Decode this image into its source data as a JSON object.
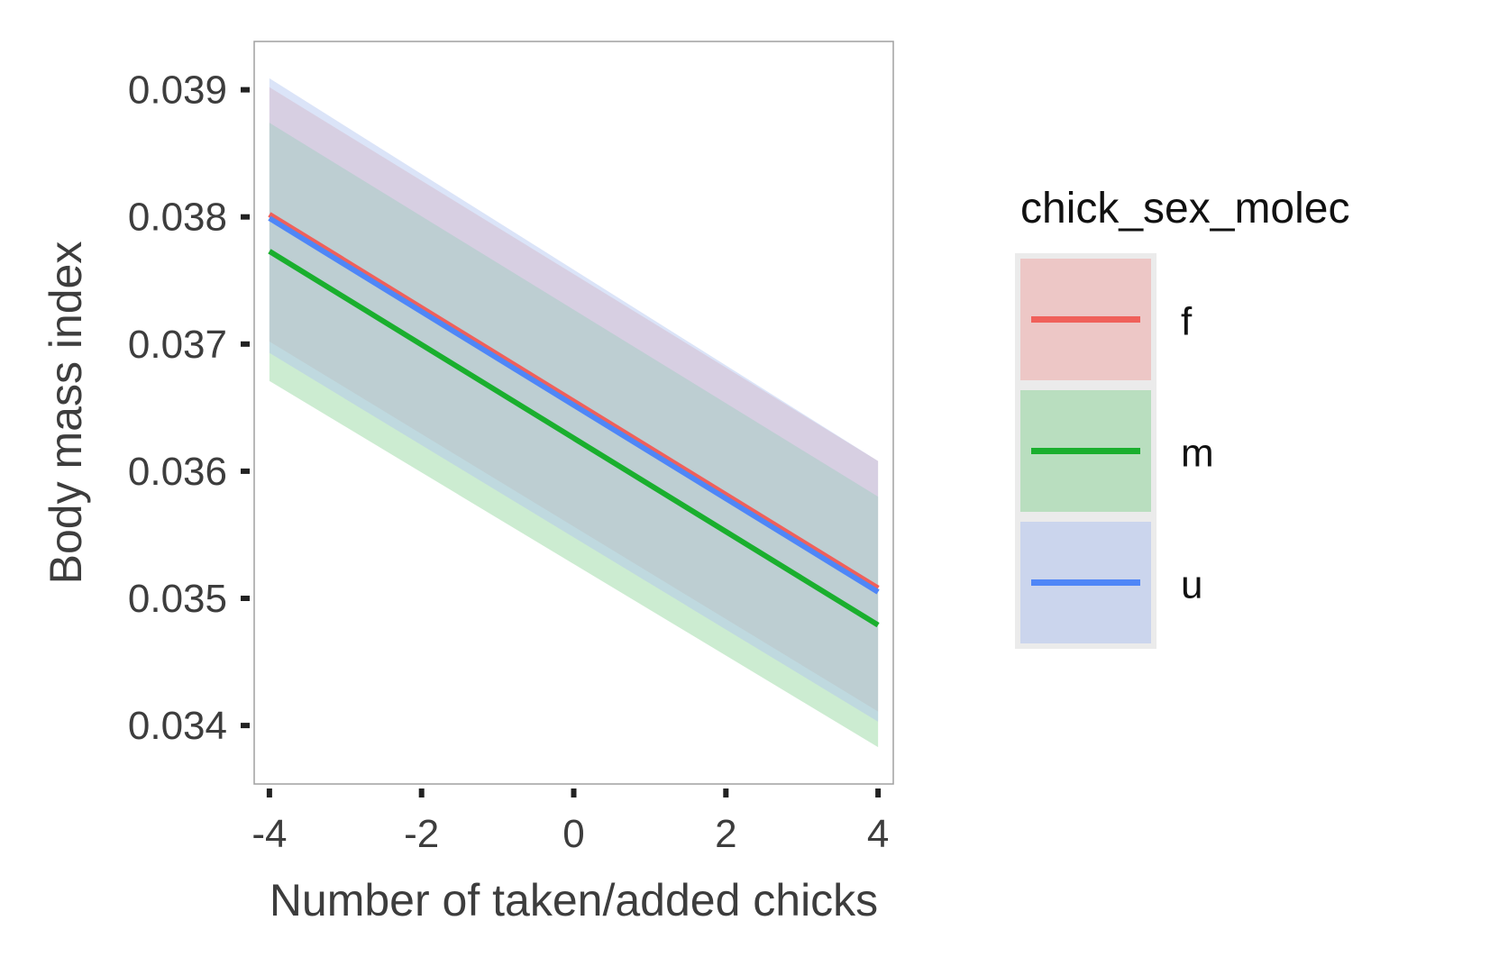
{
  "chart_data": {
    "type": "line",
    "xlabel": "Number of taken/added chicks",
    "ylabel": "Body mass index",
    "xlim": [
      -4.2,
      4.2
    ],
    "ylim": [
      0.03354,
      0.03938
    ],
    "x_ticks": [
      -4,
      -2,
      0,
      2,
      4
    ],
    "x_tick_labels": [
      "-4",
      "-2",
      "0",
      "2",
      "4"
    ],
    "y_ticks": [
      0.034,
      0.035,
      0.036,
      0.037,
      0.038,
      0.039
    ],
    "y_tick_labels": [
      "0.034",
      "0.035",
      "0.036",
      "0.037",
      "0.038",
      "0.039"
    ],
    "grid": false,
    "legend": {
      "title": "chick_sex_molec",
      "placement": "right"
    },
    "series": [
      {
        "name": "f",
        "color": "#f0605a",
        "fill": "#eeaaa8",
        "x": [
          -4,
          4
        ],
        "y": [
          0.03802,
          0.03508
        ],
        "lower": [
          0.03702,
          0.03411
        ],
        "upper": [
          0.03902,
          0.03608
        ]
      },
      {
        "name": "m",
        "color": "#1aaf2e",
        "fill": "#8fd49a",
        "x": [
          -4,
          4
        ],
        "y": [
          0.03773,
          0.03479
        ],
        "lower": [
          0.03671,
          0.03383
        ],
        "upper": [
          0.03874,
          0.0358
        ]
      },
      {
        "name": "u",
        "color": "#4f86f7",
        "fill": "#b0c3ef",
        "x": [
          -4,
          4
        ],
        "y": [
          0.03799,
          0.03505
        ],
        "lower": [
          0.03693,
          0.03403
        ],
        "upper": [
          0.03909,
          0.03608
        ]
      }
    ]
  }
}
